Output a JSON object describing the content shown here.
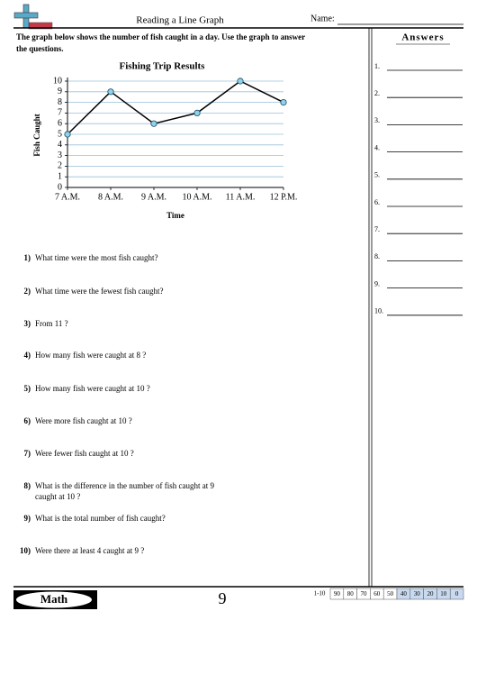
{
  "header": {
    "title": "Reading a Line Graph",
    "name_label": "Name:"
  },
  "instructions": [
    "The graph below shows the number of fish caught in a day. Use the graph to answer",
    "the questions."
  ],
  "chart_data": {
    "type": "line",
    "title": "Fishing Trip Results",
    "x_label": "Time",
    "y_label": "Fish Caught",
    "categories": [
      "7 A.M.",
      "8 A.M.",
      "9 A.M.",
      "10 A.M.",
      "11 A.M.",
      "12 P.M."
    ],
    "values": [
      5,
      9,
      6,
      7,
      10,
      8
    ],
    "color": "#000000",
    "marker_color": "#8fd3e8",
    "ylim": [
      0,
      10
    ],
    "yticks": [
      0,
      1,
      2,
      3,
      4,
      5,
      6,
      7,
      8,
      9,
      10
    ],
    "grid": true,
    "grid_color": "#9cc0dc"
  },
  "questions": [
    {
      "number": "1)",
      "lines": [
        "What time were the most fish caught?"
      ]
    },
    {
      "number": "2)",
      "lines": [
        "What time were the fewest fish caught?"
      ]
    },
    {
      "number": "3)",
      "lines": [
        "From 11  ?"
      ]
    },
    {
      "number": "4)",
      "lines": [
        "How many fish were caught at 8  ?"
      ]
    },
    {
      "number": "5)",
      "lines": [
        "How many fish were caught at 10  ?"
      ]
    },
    {
      "number": "6)",
      "lines": [
        "Were more fish caught at 10  ?"
      ]
    },
    {
      "number": "7)",
      "lines": [
        "Were fewer fish caught at 10  ?"
      ]
    },
    {
      "number": "8)",
      "lines": [
        "What is the difference in the number of fish caught at 9",
        "caught at 10  ?"
      ]
    },
    {
      "number": "9)",
      "lines": [
        "What is the total number of fish caught?"
      ]
    },
    {
      "number": "10)",
      "lines": [
        "Were there at least 4 caught at 9  ?"
      ]
    }
  ],
  "answers": {
    "title": "Answers",
    "numbers": [
      "1.",
      "2.",
      "3.",
      "4.",
      "5.",
      "6.",
      "7.",
      "8.",
      "9.",
      "10."
    ]
  },
  "footer": {
    "subject": "Math",
    "page": "9",
    "range": "1-10",
    "scores": [
      "90",
      "80",
      "70",
      "60",
      "50",
      "40",
      "30",
      "20",
      "10",
      "0"
    ]
  }
}
